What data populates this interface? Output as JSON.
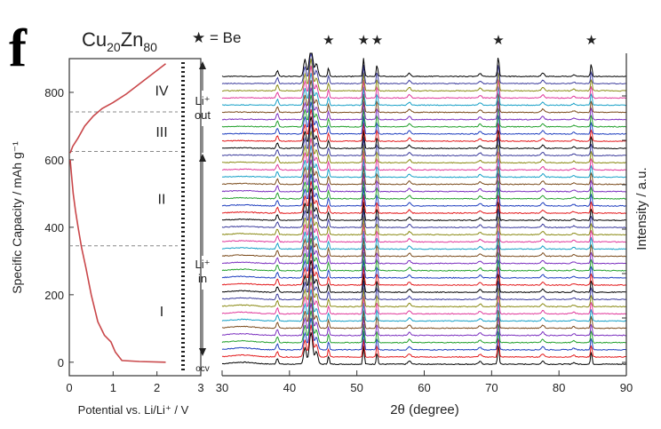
{
  "figure": {
    "panel_letter": "f",
    "title_main": "Cu",
    "title_sub1": "20",
    "title_mid": "Zn",
    "title_sub2": "80",
    "legend_star": "★ = Be"
  },
  "chart_data": [
    {
      "type": "line",
      "name": "voltage-profile",
      "xlabel": "Potential vs. Li/Li⁺ / V",
      "ylabel": "Specific Capacity / mAh g⁻¹",
      "xlim": [
        0,
        3
      ],
      "ylim": [
        -40,
        900
      ],
      "xticks": [
        0,
        1,
        2,
        3
      ],
      "yticks": [
        0,
        200,
        400,
        600,
        800
      ],
      "discharge": {
        "x": [
          2.2,
          1.6,
          1.2,
          1.05,
          0.95,
          0.8,
          0.65,
          0.5,
          0.38,
          0.28,
          0.2,
          0.14,
          0.09,
          0.06,
          0.04,
          0.02
        ],
        "y": [
          0,
          2,
          5,
          30,
          60,
          80,
          120,
          200,
          280,
          340,
          400,
          450,
          500,
          540,
          570,
          600
        ]
      },
      "charge": {
        "x": [
          0.02,
          0.08,
          0.2,
          0.35,
          0.55,
          0.75,
          1.0,
          1.3,
          1.6,
          1.9,
          2.1,
          2.2
        ],
        "y": [
          620,
          640,
          665,
          700,
          730,
          752,
          770,
          795,
          825,
          855,
          875,
          885
        ]
      },
      "regions": [
        {
          "label": "I",
          "y_boundary": 345
        },
        {
          "label": "II",
          "y_boundary": 625
        },
        {
          "label": "III",
          "y_boundary": 742
        },
        {
          "label": "IV",
          "y_boundary": 900
        }
      ],
      "annotations": {
        "li_out": [
          "Li⁺",
          "out"
        ],
        "li_in": [
          "Li⁺",
          "in"
        ],
        "ocv": "ocv"
      }
    },
    {
      "type": "line",
      "name": "xrd-patterns",
      "xlabel": "2θ (degree)",
      "ylabel": "Intensity / a.u.",
      "xlim": [
        30,
        90
      ],
      "xticks": [
        30,
        40,
        50,
        60,
        70,
        80,
        90
      ],
      "n_series": 41,
      "colors": [
        "#000000",
        "#e31a1c",
        "#1f3fbf",
        "#22a02c",
        "#7b2fbf",
        "#7a4a1a",
        "#17a0c7",
        "#e0389a",
        "#8a8a14",
        "#3b3b9c"
      ],
      "peaks": [
        {
          "x": 38.2,
          "h": 0.55,
          "w": 0.22
        },
        {
          "x": 42.3,
          "h": 1.6,
          "w": 0.28
        },
        {
          "x": 43.2,
          "h": 3.0,
          "w": 0.35
        },
        {
          "x": 44.0,
          "h": 1.2,
          "w": 0.3
        },
        {
          "x": 57.8,
          "h": 0.3,
          "w": 0.3
        },
        {
          "x": 68.3,
          "h": 0.25,
          "w": 0.3
        },
        {
          "x": 77.6,
          "h": 0.3,
          "w": 0.3
        },
        {
          "x": 82.2,
          "h": 0.15,
          "w": 0.3
        }
      ],
      "be_peaks": [
        {
          "x": 45.8,
          "h": 0.8
        },
        {
          "x": 51.0,
          "h": 1.7
        },
        {
          "x": 53.0,
          "h": 1.1
        },
        {
          "x": 71.0,
          "h": 1.9
        },
        {
          "x": 84.8,
          "h": 1.2
        }
      ]
    }
  ]
}
